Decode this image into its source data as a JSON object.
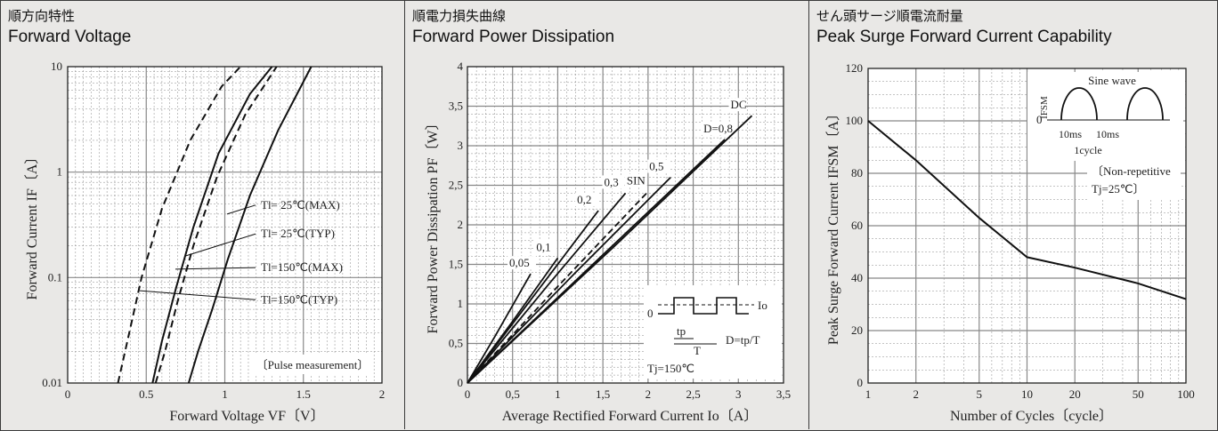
{
  "panels": [
    {
      "title_jp": "順方向特性",
      "title_en": "Forward Voltage"
    },
    {
      "title_jp": "順電力損失曲線",
      "title_en": "Forward Power Dissipation"
    },
    {
      "title_jp": "せん頭サージ順電流耐量",
      "title_en": "Peak Surge Forward Current Capability"
    }
  ],
  "chart_data": [
    {
      "type": "line",
      "title": "Forward Voltage",
      "xlabel": "Forward Voltage  VF〔V〕",
      "ylabel": "Forward Current  IF〔A〕",
      "xscale": "linear",
      "yscale": "log",
      "xlim": [
        0,
        2
      ],
      "ylim": [
        0.01,
        10
      ],
      "x_ticks": [
        "0",
        "0.5",
        "1",
        "1.5",
        "2"
      ],
      "y_ticks": [
        "0.01",
        "0.1",
        "1",
        "10"
      ],
      "grid": true,
      "series": [
        {
          "name": "Tl= 25℃(MAX)",
          "style": "solid",
          "x": [
            0.77,
            0.83,
            0.92,
            1.02,
            1.16,
            1.34,
            1.55
          ],
          "y": [
            0.01,
            0.02,
            0.05,
            0.15,
            0.6,
            2.5,
            10
          ]
        },
        {
          "name": "Tl= 25℃(TYP)",
          "style": "dashed",
          "x": [
            0.56,
            0.62,
            0.7,
            0.8,
            0.95,
            1.13,
            1.33
          ],
          "y": [
            0.01,
            0.02,
            0.06,
            0.2,
            0.9,
            3.5,
            10
          ]
        },
        {
          "name": "Tl=150℃(MAX)",
          "style": "solid",
          "x": [
            0.54,
            0.6,
            0.69,
            0.8,
            0.96,
            1.16,
            1.3
          ],
          "y": [
            0.01,
            0.025,
            0.08,
            0.3,
            1.5,
            5.5,
            10
          ]
        },
        {
          "name": "Tl=150℃(TYP)",
          "style": "dashed",
          "x": [
            0.32,
            0.38,
            0.47,
            0.6,
            0.78,
            0.98,
            1.1
          ],
          "y": [
            0.01,
            0.025,
            0.1,
            0.45,
            2.0,
            6.5,
            10
          ]
        }
      ],
      "annotations": [
        "Pulse measurement"
      ]
    },
    {
      "type": "line",
      "title": "Forward Power Dissipation",
      "xlabel": "Average Rectified Forward Current  Io〔A〕",
      "ylabel": "Forward Power Dissipation  PF〔W〕",
      "xlim": [
        0,
        3.5
      ],
      "ylim": [
        0,
        4
      ],
      "x_ticks": [
        "0",
        "0,5",
        "1",
        "1,5",
        "2",
        "2,5",
        "3",
        "3,5"
      ],
      "y_ticks": [
        "0",
        "0,5",
        "1",
        "1,5",
        "2",
        "2,5",
        "3",
        "3,5",
        "4"
      ],
      "grid": true,
      "series": [
        {
          "name": "0,05",
          "style": "solid",
          "x": [
            0,
            0.3,
            0.7
          ],
          "y": [
            0,
            0.58,
            1.38
          ]
        },
        {
          "name": "0,1",
          "style": "solid",
          "x": [
            0,
            0.5,
            1.0
          ],
          "y": [
            0,
            0.78,
            1.58
          ]
        },
        {
          "name": "0,2",
          "style": "solid",
          "x": [
            0,
            0.7,
            1.45
          ],
          "y": [
            0,
            1.05,
            2.18
          ]
        },
        {
          "name": "0,3",
          "style": "solid",
          "x": [
            0,
            0.9,
            1.75
          ],
          "y": [
            0,
            1.25,
            2.4
          ]
        },
        {
          "name": "SIN",
          "style": "dashed",
          "x": [
            0,
            1.0,
            2.0
          ],
          "y": [
            0,
            1.22,
            2.42
          ]
        },
        {
          "name": "0,5",
          "style": "solid",
          "x": [
            0,
            1.2,
            2.25
          ],
          "y": [
            0,
            1.4,
            2.6
          ]
        },
        {
          "name": "D=0,8",
          "style": "solid",
          "x": [
            0,
            1.5,
            2.85
          ],
          "y": [
            0,
            1.62,
            3.08
          ]
        },
        {
          "name": "DC",
          "style": "solid",
          "x": [
            0,
            1.6,
            3.15
          ],
          "y": [
            0,
            1.7,
            3.38
          ]
        }
      ],
      "annotations": [
        "0",
        "Io",
        "tp",
        "T",
        "D=tp/T",
        "Tj=150℃"
      ]
    },
    {
      "type": "line",
      "title": "Peak Surge Forward Current Capability",
      "xlabel": "Number of Cycles〔cycle〕",
      "ylabel": "Peak Surge Forward Current  IFSM〔A〕",
      "xscale": "log",
      "xlim": [
        1,
        100
      ],
      "ylim": [
        0,
        120
      ],
      "x_ticks": [
        "1",
        "2",
        "5",
        "10",
        "20",
        "50",
        "100"
      ],
      "y_ticks": [
        "0",
        "20",
        "40",
        "60",
        "80",
        "100",
        "120"
      ],
      "grid": true,
      "series": [
        {
          "name": "",
          "style": "solid",
          "x": [
            1,
            2,
            5,
            10,
            20,
            50,
            100
          ],
          "y": [
            100,
            85,
            63,
            48,
            44,
            38,
            32
          ]
        }
      ],
      "annotations": [
        "Sine wave",
        "IFSM",
        "0",
        "10ms",
        "10ms",
        "1cycle",
        "Non-repetitive",
        "Tj=25℃"
      ]
    }
  ]
}
